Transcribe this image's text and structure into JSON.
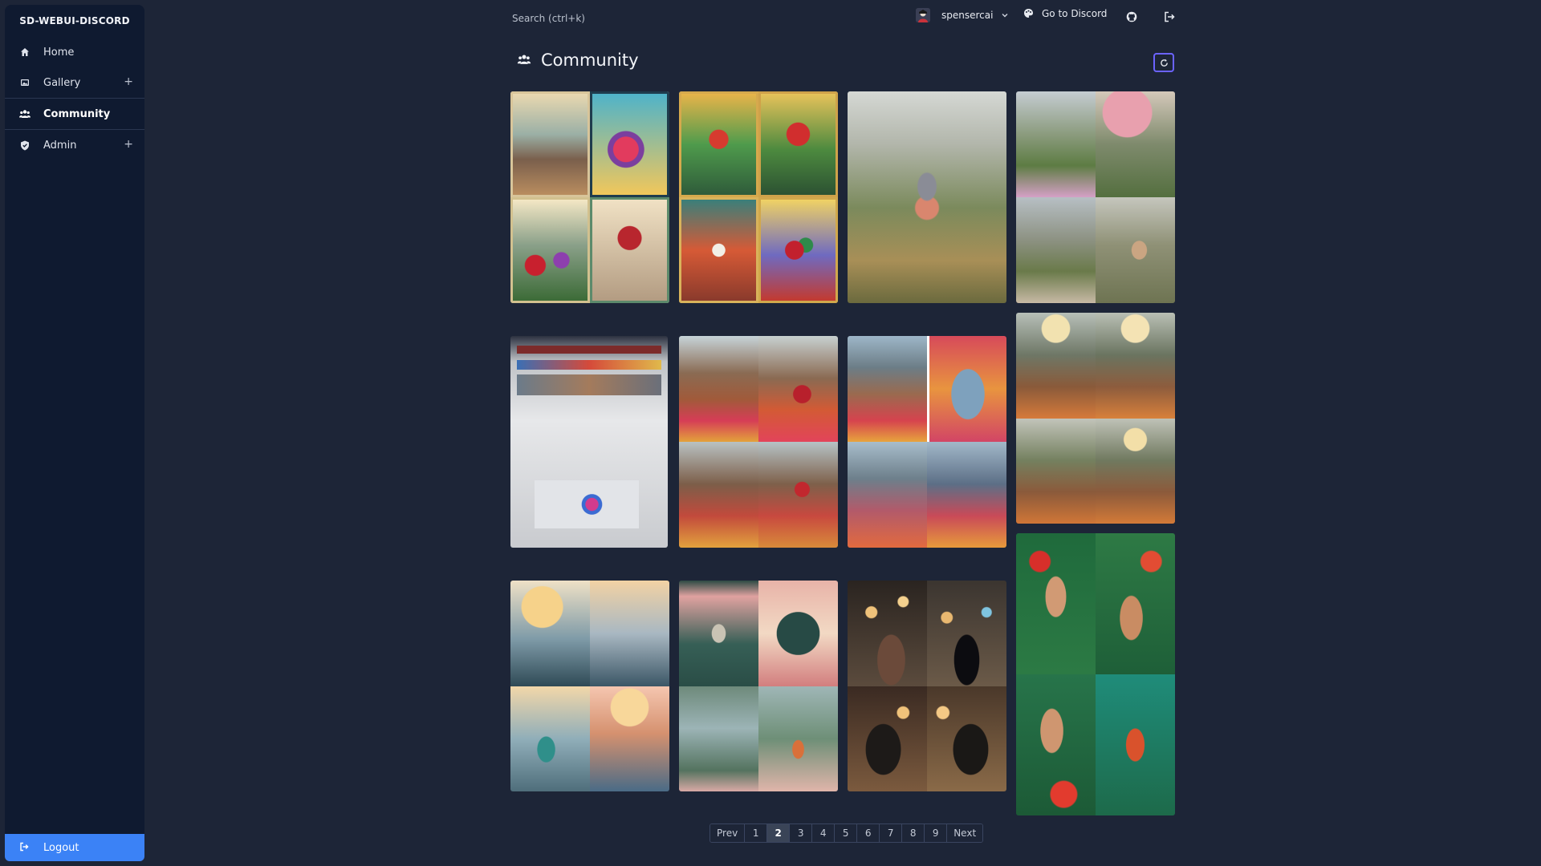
{
  "sidebar": {
    "brand": "SD-WEBUI-DISCORD",
    "items": [
      {
        "label": "Home"
      },
      {
        "label": "Gallery",
        "expand": "+"
      },
      {
        "label": "Community"
      },
      {
        "label": "Admin",
        "expand": "+"
      }
    ],
    "logout": "Logout"
  },
  "topbar": {
    "search_placeholder": "Search (ctrl+k)",
    "username": "spensercai",
    "discord_label": "Go to Discord"
  },
  "page": {
    "title": "Community"
  },
  "pagination": {
    "prev": "Prev",
    "pages": [
      "1",
      "2",
      "3",
      "4",
      "5",
      "6",
      "7",
      "8",
      "9"
    ],
    "current": "2",
    "next": "Next"
  },
  "colors": {
    "accent": "#3b82f6",
    "refresh_border": "#6b63ff",
    "background": "#1d2537",
    "sidebar": "#0f1a30"
  }
}
